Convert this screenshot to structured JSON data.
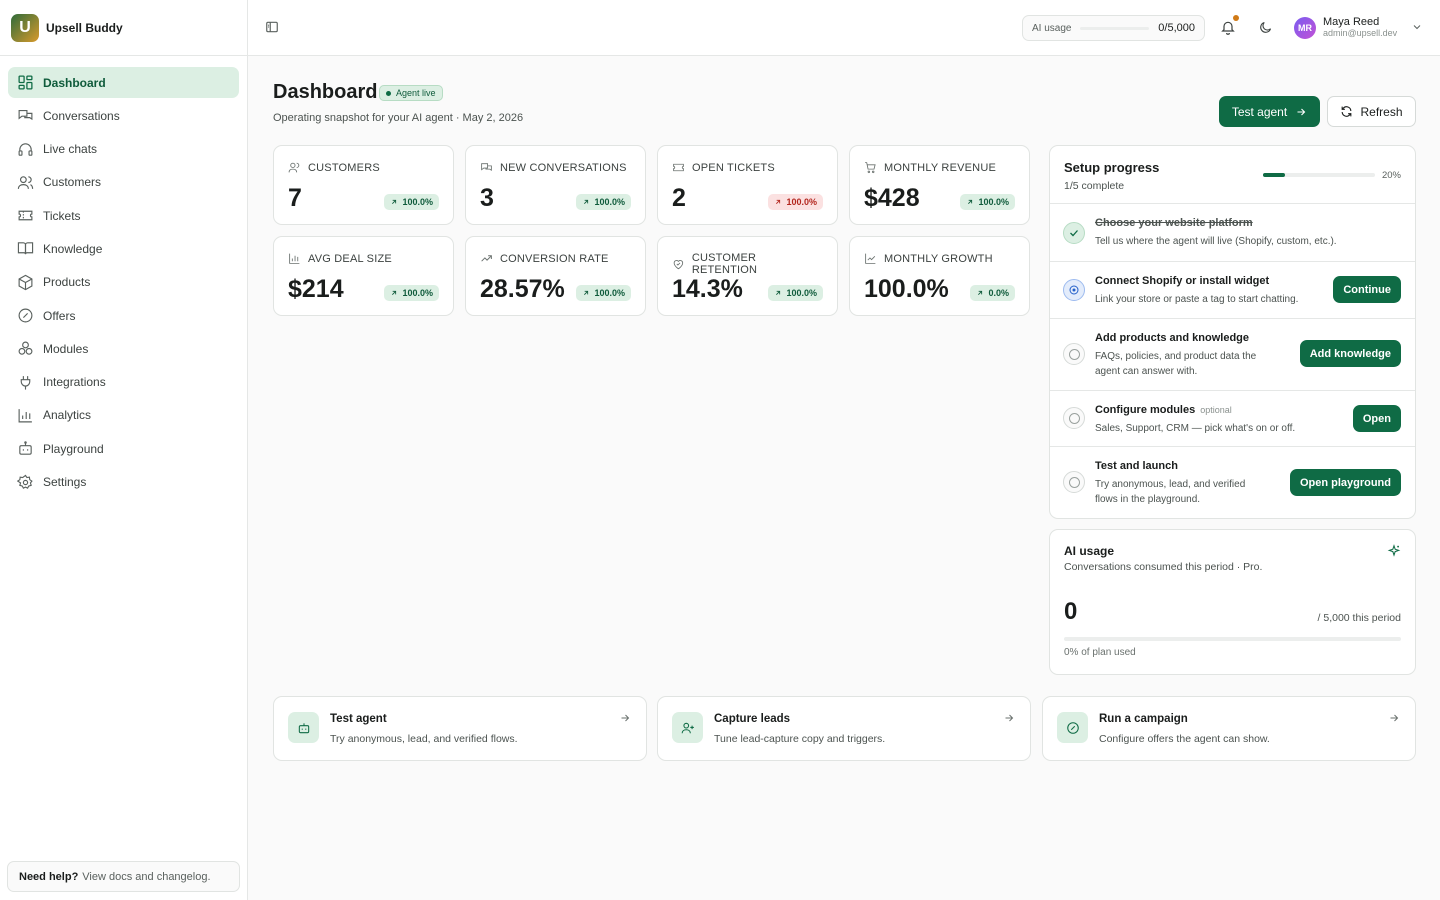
{
  "brand": {
    "name": "Upsell Buddy",
    "logo_letter": "U"
  },
  "sidebar": {
    "items": [
      {
        "label": "Dashboard",
        "icon": "grid-icon",
        "active": true
      },
      {
        "label": "Conversations",
        "icon": "chat-bubbles-icon"
      },
      {
        "label": "Live chats",
        "icon": "headset-icon"
      },
      {
        "label": "Customers",
        "icon": "users-icon"
      },
      {
        "label": "Tickets",
        "icon": "ticket-icon"
      },
      {
        "label": "Knowledge",
        "icon": "book-icon"
      },
      {
        "label": "Products",
        "icon": "package-icon"
      },
      {
        "label": "Offers",
        "icon": "badge-percent-icon"
      },
      {
        "label": "Modules",
        "icon": "boxes-icon"
      },
      {
        "label": "Integrations",
        "icon": "plug-icon"
      },
      {
        "label": "Analytics",
        "icon": "bar-chart-icon"
      },
      {
        "label": "Playground",
        "icon": "bot-icon"
      },
      {
        "label": "Settings",
        "icon": "gear-icon"
      }
    ],
    "help": {
      "strong": "Need help?",
      "text": "View docs and changelog."
    }
  },
  "topbar": {
    "usage_label": "AI usage",
    "usage_value": "0/5,000",
    "usage_fraction": 0,
    "user": {
      "initials": "MR",
      "name": "Maya Reed",
      "email": "admin@upsell.dev"
    }
  },
  "header": {
    "title": "Dashboard",
    "badge": "Agent live",
    "subtitle": "Operating snapshot for your AI agent · May 2, 2026",
    "test_button": "Test agent",
    "refresh_button": "Refresh"
  },
  "stats": [
    {
      "label": "CUSTOMERS",
      "value": "7",
      "delta": "100.0%",
      "trend": "up",
      "icon": "users-icon"
    },
    {
      "label": "NEW CONVERSATIONS",
      "value": "3",
      "delta": "100.0%",
      "trend": "up",
      "icon": "chat-bubbles-icon"
    },
    {
      "label": "OPEN TICKETS",
      "value": "2",
      "delta": "100.0%",
      "trend": "down",
      "icon": "ticket-icon"
    },
    {
      "label": "MONTHLY REVENUE",
      "value": "$428",
      "delta": "100.0%",
      "trend": "up",
      "icon": "cart-icon"
    },
    {
      "label": "AVG DEAL SIZE",
      "value": "$214",
      "delta": "100.0%",
      "trend": "up",
      "icon": "bar-chart-icon"
    },
    {
      "label": "CONVERSION RATE",
      "value": "28.57%",
      "delta": "100.0%",
      "trend": "up",
      "icon": "trending-up-icon"
    },
    {
      "label": "CUSTOMER RETENTION",
      "value": "14.3%",
      "delta": "100.0%",
      "trend": "up",
      "icon": "heart-handshake-icon"
    },
    {
      "label": "MONTHLY GROWTH",
      "value": "100.0%",
      "delta": "0.0%",
      "trend": "up",
      "icon": "line-chart-icon"
    }
  ],
  "setup": {
    "title": "Setup progress",
    "subtitle": "1/5 complete",
    "percent_label": "20%",
    "progress_fraction": 0.2,
    "steps": [
      {
        "title": "Choose your website platform",
        "desc": "Tell us where the agent will live (Shopify, custom, etc.).",
        "status": "done",
        "button": ""
      },
      {
        "title": "Connect Shopify or install widget",
        "desc": "Link your store or paste a tag to start chatting.",
        "status": "active",
        "button": "Continue"
      },
      {
        "title": "Add products and knowledge",
        "desc": "FAQs, policies, and product data the agent can answer with.",
        "status": "todo",
        "button": "Add knowledge"
      },
      {
        "title": "Configure modules",
        "optional": "optional",
        "desc": "Sales, Support, CRM — pick what's on or off.",
        "status": "todo",
        "button": "Open"
      },
      {
        "title": "Test and launch",
        "desc": "Try anonymous, lead, and verified flows in the playground.",
        "status": "todo",
        "button": "Open playground"
      }
    ]
  },
  "usage_card": {
    "title": "AI usage",
    "subtitle": "Conversations consumed this period · Pro.",
    "value": "0",
    "limit": "/ 5,000 this period",
    "percent_text": "0% of plan used",
    "fraction": 0
  },
  "quick_actions": [
    {
      "title": "Test agent",
      "desc": "Try anonymous, lead, and verified flows.",
      "icon": "bot-icon"
    },
    {
      "title": "Capture leads",
      "desc": "Tune lead-capture copy and triggers.",
      "icon": "user-plus-icon"
    },
    {
      "title": "Run a campaign",
      "desc": "Configure offers the agent can show.",
      "icon": "badge-percent-icon"
    }
  ],
  "colors": {
    "accent": "#0f6b45",
    "accent_soft": "#dcefe3",
    "danger_soft": "#fbe1e1",
    "danger": "#b3261e",
    "notification": "#d07a16"
  }
}
